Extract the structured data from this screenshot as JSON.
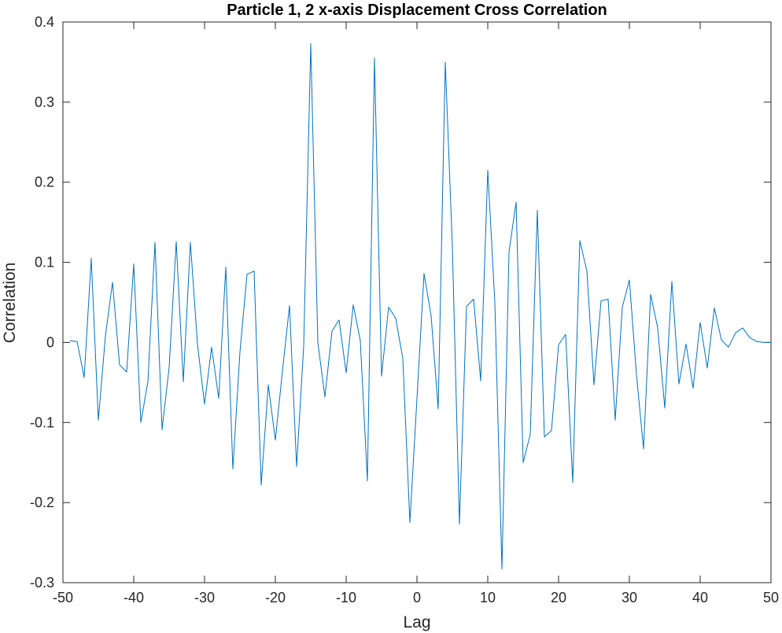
{
  "chart_data": {
    "type": "line",
    "title": "Particle 1, 2 x-axis Displacement Cross Correlation",
    "xlabel": "Lag",
    "ylabel": "Correlation",
    "xlim": [
      -50,
      50
    ],
    "ylim": [
      -0.3,
      0.4
    ],
    "xticks": [
      -50,
      -40,
      -30,
      -20,
      -10,
      0,
      10,
      20,
      30,
      40,
      50
    ],
    "yticks": [
      -0.3,
      -0.2,
      -0.1,
      0,
      0.1,
      0.2,
      0.3,
      0.4
    ],
    "xtick_labels": [
      "-50",
      "-40",
      "-30",
      "-20",
      "-10",
      "0",
      "10",
      "20",
      "30",
      "40",
      "50"
    ],
    "ytick_labels": [
      "-0.3",
      "-0.2",
      "-0.1",
      "0",
      "0.1",
      "0.2",
      "0.3",
      "0.4"
    ],
    "grid": false,
    "colors": {
      "series": "#0072BD",
      "axes": "#262626"
    },
    "series": [
      {
        "x": [
          -49,
          -48,
          -47,
          -46,
          -45,
          -44,
          -43,
          -42,
          -41,
          -40,
          -39,
          -38,
          -37,
          -36,
          -35,
          -34,
          -33,
          -32,
          -31,
          -30,
          -29,
          -28,
          -27,
          -26,
          -25,
          -24,
          -23,
          -22,
          -21,
          -20,
          -19,
          -18,
          -17,
          -16,
          -15,
          -14,
          -13,
          -12,
          -11,
          -10,
          -9,
          -8,
          -7,
          -6,
          -5,
          -4,
          -3,
          -2,
          -1,
          0,
          1,
          2,
          3,
          4,
          5,
          6,
          7,
          8,
          9,
          10,
          11,
          12,
          13,
          14,
          15,
          16,
          17,
          18,
          19,
          20,
          21,
          22,
          23,
          24,
          25,
          26,
          27,
          28,
          29,
          30,
          31,
          32,
          33,
          34,
          35,
          36,
          37,
          38,
          39,
          40,
          41,
          42,
          43,
          44,
          45,
          46,
          47,
          48,
          49,
          50
        ],
        "values": [
          0.002,
          0.001,
          -0.044,
          0.105,
          -0.097,
          0.008,
          0.075,
          -0.028,
          -0.037,
          0.098,
          -0.1,
          -0.049,
          0.125,
          -0.109,
          -0.031,
          0.126,
          -0.049,
          0.125,
          -0.002,
          -0.077,
          -0.006,
          -0.07,
          0.094,
          -0.158,
          -0.012,
          0.085,
          0.089,
          -0.178,
          -0.053,
          -0.122,
          -0.036,
          0.046,
          -0.155,
          -0.005,
          0.373,
          0.0,
          -0.068,
          0.014,
          0.028,
          -0.038,
          0.047,
          0.002,
          -0.173,
          0.355,
          -0.042,
          0.044,
          0.03,
          -0.02,
          -0.225,
          -0.07,
          0.086,
          0.033,
          -0.083,
          0.35,
          0.12,
          -0.227,
          0.045,
          0.054,
          -0.048,
          0.215,
          0.05,
          -0.283,
          0.113,
          0.175,
          -0.15,
          -0.115,
          0.165,
          -0.118,
          -0.11,
          -0.003,
          0.01,
          -0.175,
          0.127,
          0.089,
          -0.053,
          0.052,
          0.054,
          -0.097,
          0.044,
          0.078,
          -0.04,
          -0.133,
          0.06,
          0.018,
          -0.082,
          0.076,
          -0.052,
          -0.002,
          -0.057,
          0.025,
          -0.032,
          0.043,
          0.003,
          -0.006,
          0.012,
          0.018,
          0.006,
          0.001,
          0.0,
          0.0
        ]
      }
    ]
  }
}
